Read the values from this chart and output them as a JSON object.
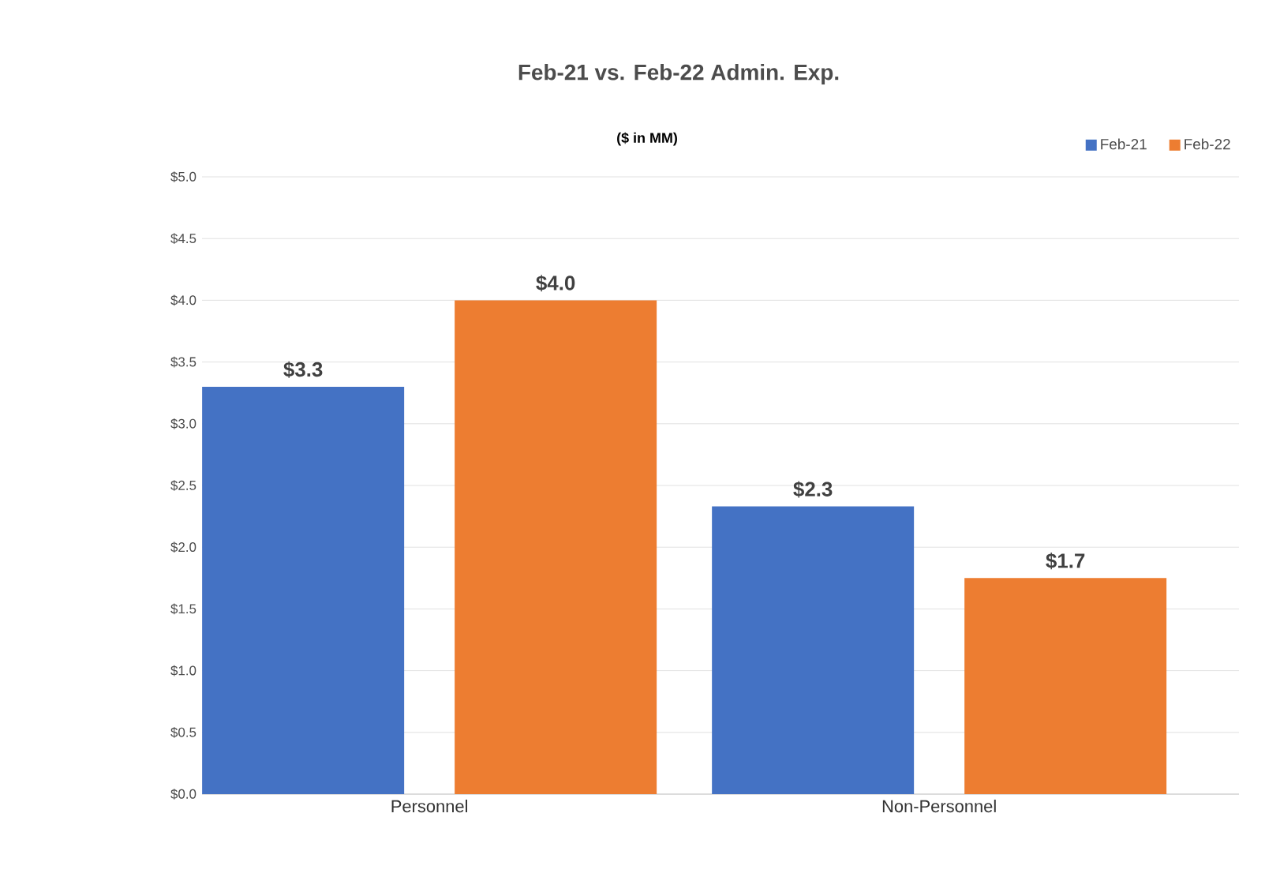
{
  "chart_data": {
    "type": "bar",
    "title": "Feb-21 vs. Feb-22 Admin. Exp.",
    "subtitle": "($ in MM)",
    "categories": [
      "Personnel",
      "Non-Personnel"
    ],
    "series": [
      {
        "name": "Feb-21",
        "color": "#4472c4",
        "values": [
          3.3,
          2.33
        ],
        "value_labels": [
          "$3.3",
          "$2.3"
        ]
      },
      {
        "name": "Feb-22",
        "color": "#ed7d31",
        "values": [
          4.0,
          1.75
        ],
        "value_labels": [
          "$4.0",
          "$1.7"
        ]
      }
    ],
    "ylim": [
      0,
      5
    ],
    "yticks": [
      {
        "value": 0,
        "label": "$0.0"
      },
      {
        "value": 0.5,
        "label": "$0.5"
      },
      {
        "value": 1,
        "label": "$1.0"
      },
      {
        "value": 1.5,
        "label": "$1.5"
      },
      {
        "value": 2,
        "label": "$2.0"
      },
      {
        "value": 2.5,
        "label": "$2.5"
      },
      {
        "value": 3,
        "label": "$3.0"
      },
      {
        "value": 3.5,
        "label": "$3.5"
      },
      {
        "value": 4,
        "label": "$4.0"
      },
      {
        "value": 4.5,
        "label": "$4.5"
      },
      {
        "value": 5,
        "label": "$5.0"
      }
    ],
    "grid": "y",
    "legend": "top right"
  }
}
